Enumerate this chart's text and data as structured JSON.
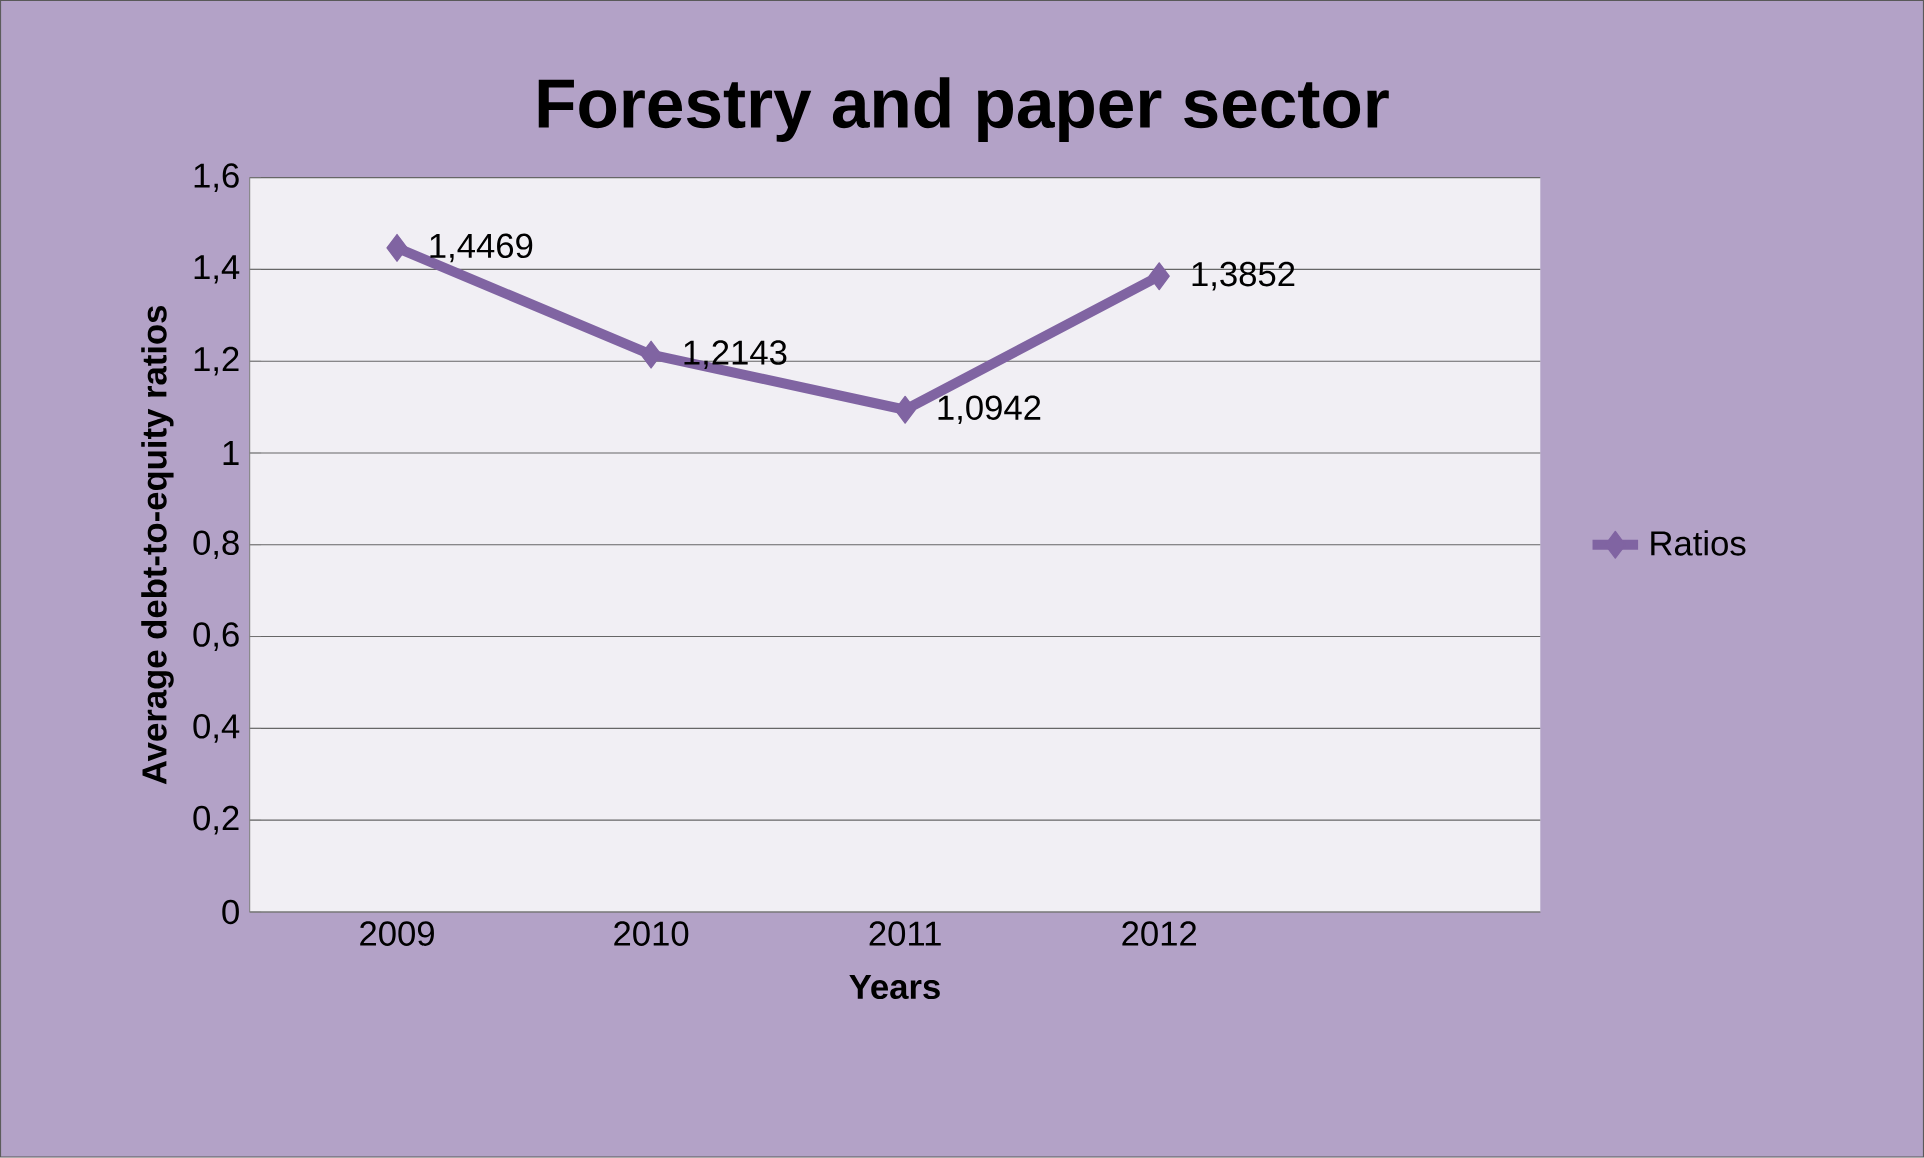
{
  "chart_data": {
    "type": "line",
    "title": "Forestry and paper  sector",
    "xlabel": "Years",
    "ylabel": "Average debt-to-equity ratios",
    "categories": [
      "2009",
      "2010",
      "2011",
      "2012"
    ],
    "series": [
      {
        "name": "Ratios",
        "color": "#8064a2",
        "values": [
          1.4469,
          1.2143,
          1.0942,
          1.3852
        ],
        "value_labels": [
          "1,4469",
          "1,2143",
          "1,0942",
          "1,3852"
        ]
      }
    ],
    "ylim": [
      0,
      1.6
    ],
    "yticks": [
      0,
      {
        "value": 0.2,
        "label": "0,2"
      },
      {
        "value": 0.4,
        "label": "0,4"
      },
      {
        "value": 0.6,
        "label": "0,6"
      },
      {
        "value": 0.8,
        "label": "0,8"
      },
      1,
      {
        "value": 1.2,
        "label": "1,2"
      },
      {
        "value": 1.4,
        "label": "1,4"
      },
      {
        "value": 1.6,
        "label": "1,6"
      }
    ],
    "grid": "y",
    "legend": "right",
    "marker": "diamond"
  }
}
